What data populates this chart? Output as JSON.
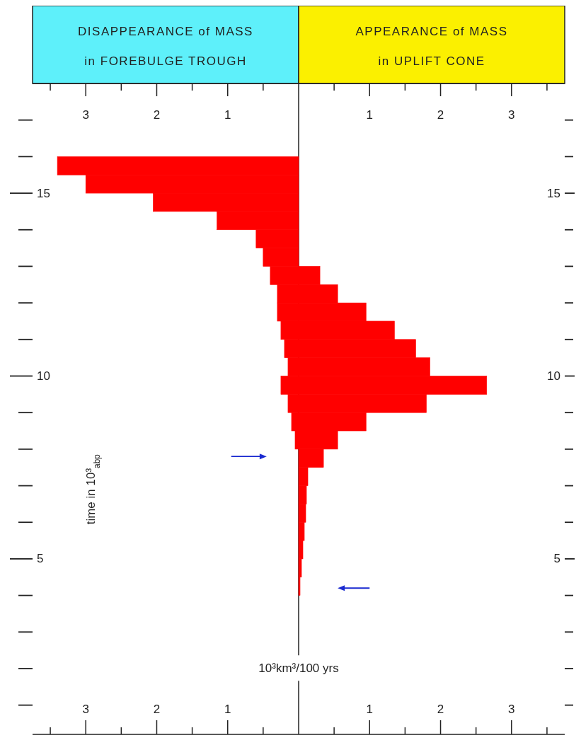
{
  "chart_data": {
    "type": "histogram",
    "orientation": "horizontal",
    "xlabel": "10³km³/100 yrs",
    "ylabel": "time in 10³$_{abp}$",
    "annotations": [
      "DISAPPEARANCE of MASS in FOREBULGE TROUGH",
      "APPEARANCE of MASS in UPLIFT CONE"
    ],
    "bins": [
      4,
      4.5,
      5,
      5.5,
      6,
      6.5,
      7,
      7.5,
      8,
      8.5,
      9,
      9.5,
      10,
      10.5,
      11,
      11.5,
      12,
      12.5,
      13,
      13.5,
      14,
      14.5,
      15,
      15.5,
      16
    ],
    "series": [
      {
        "color": "#ff0000",
        "values": [
          null,
          null,
          null,
          null,
          null,
          null,
          null,
          null,
          -0.05,
          -0.1,
          -0.15,
          -0.25,
          -0.15,
          -0.2,
          -0.25,
          -0.3,
          -0.3,
          -0.4,
          -0.5,
          -0.6,
          -1.15,
          -2.05,
          -3.0,
          -3.4
        ]
      },
      {
        "color": "#ff0000",
        "values": [
          0.02,
          0.04,
          0.06,
          0.08,
          0.1,
          0.11,
          0.13,
          0.35,
          0.55,
          0.95,
          1.8,
          2.65,
          1.85,
          1.65,
          1.35,
          0.95,
          0.55,
          0.3,
          null,
          null,
          null,
          null,
          null,
          null
        ]
      }
    ],
    "xlim": [
      -3.75,
      3.75
    ],
    "xticks": [
      {
        "value": -3.5,
        "label": null
      },
      {
        "value": -3,
        "label": "3"
      },
      {
        "value": -2.5,
        "label": null
      },
      {
        "value": -2,
        "label": "2"
      },
      {
        "value": -1.5,
        "label": null
      },
      {
        "value": -1,
        "label": "1"
      },
      {
        "value": -0.5,
        "label": null
      },
      {
        "value": 0.5,
        "label": null
      },
      {
        "value": 1,
        "label": "1"
      },
      {
        "value": 1.5,
        "label": null
      },
      {
        "value": 2,
        "label": "2"
      },
      {
        "value": 2.5,
        "label": null
      },
      {
        "value": 3,
        "label": "3"
      },
      {
        "value": 3.5,
        "label": null
      }
    ],
    "x2lim": [
      -3.75,
      3.75
    ],
    "x2ticks": [
      {
        "value": -3.5,
        "label": null
      },
      {
        "value": -3,
        "label": "3"
      },
      {
        "value": -2.5,
        "label": null
      },
      {
        "value": -2,
        "label": "2"
      },
      {
        "value": -1.5,
        "label": null
      },
      {
        "value": -1,
        "label": "1"
      },
      {
        "value": -0.5,
        "label": null
      },
      {
        "value": 0.5,
        "label": null
      },
      {
        "value": 1,
        "label": "1"
      },
      {
        "value": 1.5,
        "label": null
      },
      {
        "value": 2,
        "label": "2"
      },
      {
        "value": 2.5,
        "label": null
      },
      {
        "value": 3,
        "label": "3"
      },
      {
        "value": 3.5,
        "label": null
      }
    ],
    "ylim": [
      0.2,
      18
    ],
    "yticks": [
      {
        "value": 1,
        "label": null
      },
      {
        "value": 2,
        "label": null
      },
      {
        "value": 3,
        "label": null
      },
      {
        "value": 4,
        "label": null
      },
      5,
      {
        "value": 6,
        "label": null
      },
      {
        "value": 7,
        "label": null
      },
      {
        "value": 8,
        "label": null
      },
      {
        "value": 9,
        "label": null
      },
      10,
      {
        "value": 11,
        "label": null
      },
      {
        "value": 12,
        "label": null
      },
      {
        "value": 13,
        "label": null
      },
      {
        "value": 14,
        "label": null
      },
      15,
      {
        "value": 16,
        "label": null
      },
      {
        "value": 17,
        "label": null
      }
    ],
    "y2lim": [
      0.2,
      18
    ],
    "y2ticks": [
      {
        "value": 1,
        "label": null
      },
      {
        "value": 2,
        "label": null
      },
      {
        "value": 3,
        "label": null
      },
      {
        "value": 4,
        "label": null
      },
      5,
      {
        "value": 6,
        "label": null
      },
      {
        "value": 7,
        "label": null
      },
      {
        "value": 8,
        "label": null
      },
      {
        "value": 9,
        "label": null
      },
      10,
      {
        "value": 11,
        "label": null
      },
      {
        "value": 12,
        "label": null
      },
      {
        "value": 13,
        "label": null
      },
      {
        "value": 14,
        "label": null
      },
      15,
      {
        "value": 16,
        "label": null
      },
      {
        "value": 17,
        "label": null
      }
    ]
  }
}
